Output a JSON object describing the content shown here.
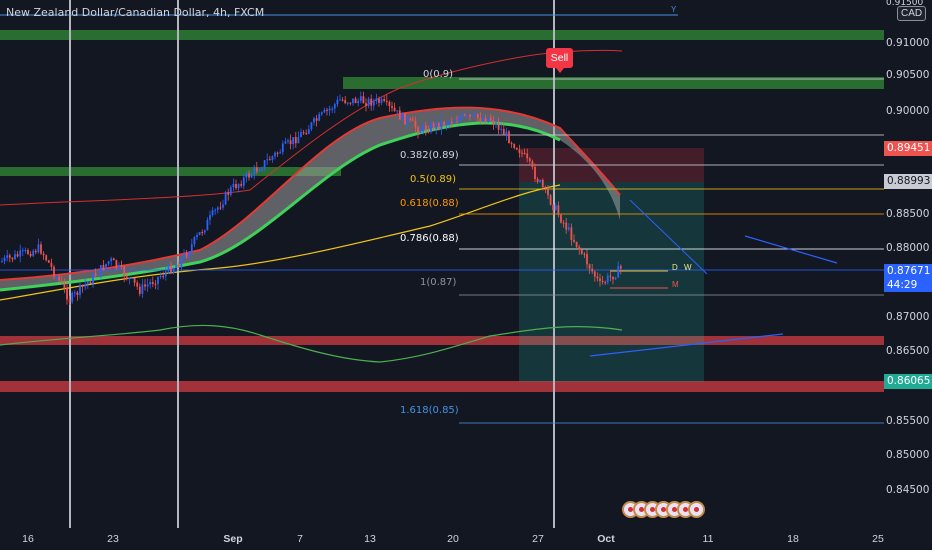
{
  "header": {
    "symbol_title": "New Zealand Dollar/Canadian Dollar, 4h, FXCM",
    "currency_badge": "CAD",
    "top_right_partial": "0.91500"
  },
  "price_axis": {
    "labels": [
      "0.91000",
      "0.90500",
      "0.90000",
      "0.88500",
      "0.88000",
      "0.87000",
      "0.86500",
      "0.85500",
      "0.85000",
      "0.84500"
    ],
    "tags": {
      "tag_red": "0.89451",
      "tag_gray": "0.88993",
      "tag_blue_price": "0.87671",
      "tag_blue_time": "44:29",
      "tag_green": "0.86065"
    }
  },
  "time_axis": {
    "labels": [
      "16",
      "23",
      "Sep",
      "7",
      "13",
      "20",
      "27",
      "Oct",
      "11",
      "18",
      "25"
    ]
  },
  "fib_levels": {
    "l0": "0(0.9)",
    "l382": "0.382(0.89)",
    "l5": "0.5(0.89)",
    "l618": "0.618(0.88)",
    "l786": "0.786(0.88)",
    "l1": "1(0.87)",
    "l1618": "1.618(0.85)"
  },
  "annotations": {
    "sell_label": "Sell",
    "d_label": "D",
    "w_label": "W",
    "m_label": "M",
    "y_label": "Y"
  },
  "colors": {
    "background": "#131722",
    "support_zone": "#b2353d",
    "resistance_zone": "#2e7d32",
    "bull_candle": "#2962ff",
    "bear_candle": "#ef5350"
  }
}
